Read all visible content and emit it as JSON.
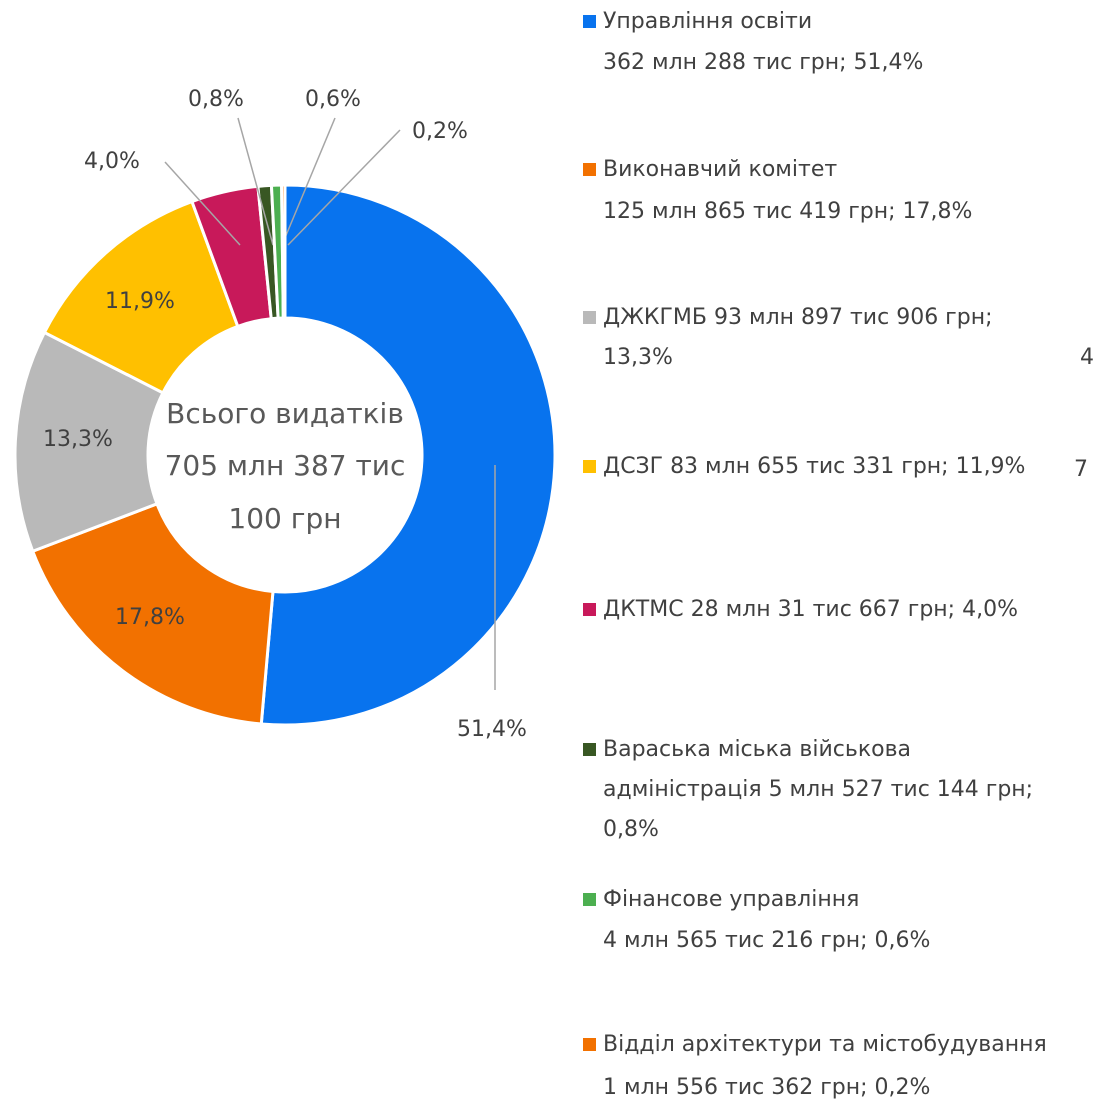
{
  "chart_data": {
    "type": "donut",
    "center_text": [
      "Всього видатків",
      "705 млн 387 тис",
      "100 грн"
    ],
    "categories": [
      [
        "Управління освіти",
        "362 млн 288 тис грн; 51,4%"
      ],
      [
        "Виконавчий комітет",
        "125 млн 865 тис 419 грн; 17,8%"
      ],
      [
        "ДЖКГМБ 93 млн 897 тис 906 грн;",
        "13,3%"
      ],
      [
        "ДСЗГ 83 млн 655 тис 331 грн; 11,9%"
      ],
      [
        "ДКТМС 28 млн 31 тис 667 грн; 4,0%"
      ],
      [
        "Вараська міська військова",
        "адміністрація 5 млн 527 тис 144 грн;",
        "0,8%"
      ],
      [
        "Фінансове управління",
        "4 млн 565 тис 216 грн; 0,6%"
      ],
      [
        "Відділ архітектури та містобудування",
        "1 млн 556 тис 362 грн; 0,2%"
      ]
    ],
    "values": [
      51.4,
      17.8,
      13.3,
      11.9,
      4.0,
      0.8,
      0.6,
      0.2
    ],
    "value_labels": [
      "51,4%",
      "17,8%",
      "13,3%",
      "11,9%",
      "4,0%",
      "0,8%",
      "0,6%",
      "0,2%"
    ],
    "colors": [
      "#0873ee",
      "#f27100",
      "#b9b9b9",
      "#ffc000",
      "#c8195a",
      "#385723",
      "#4caf50",
      "#f27100"
    ],
    "annotations": [
      "4",
      "7"
    ]
  }
}
